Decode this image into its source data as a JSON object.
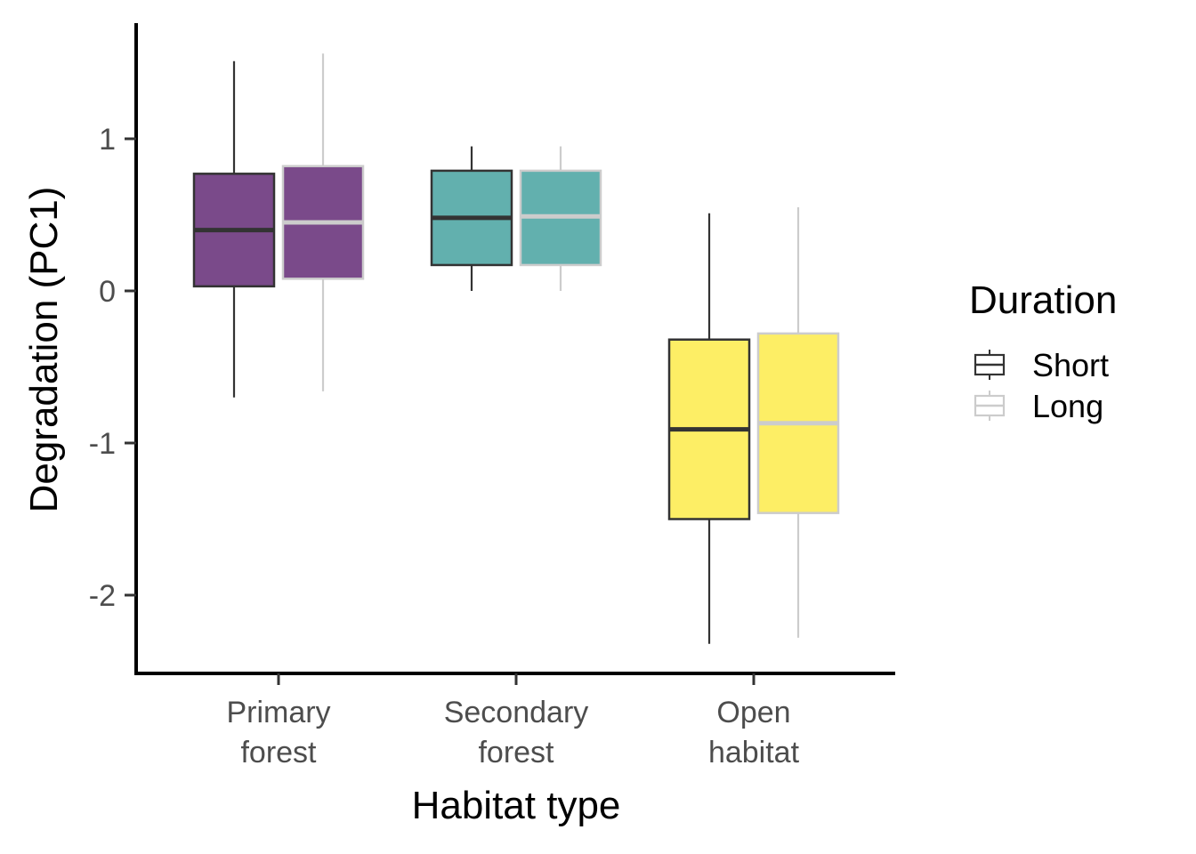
{
  "chart_data": {
    "type": "boxplot",
    "xlabel": "Habitat type",
    "ylabel": "Degradation (PC1)",
    "ylim": [
      -2.5,
      1.75
    ],
    "yticks": [
      -2,
      -1,
      0,
      1
    ],
    "ytick_labels": [
      "-2",
      "-1",
      "0",
      "1"
    ],
    "grid": false,
    "categories": [
      {
        "lines": [
          "Primary",
          "forest"
        ],
        "fill": "#7a4a8a"
      },
      {
        "lines": [
          "Secondary",
          "forest"
        ],
        "fill": "#62b0ae"
      },
      {
        "lines": [
          "Open",
          "habitat"
        ],
        "fill": "#fdee65"
      }
    ],
    "legend": {
      "title": "Duration",
      "position": "right",
      "entries": [
        {
          "label": "Short",
          "color": "#333333"
        },
        {
          "label": "Long",
          "color": "#cccccc"
        }
      ]
    },
    "series": [
      {
        "name": "Short",
        "stroke": "#333333",
        "boxes": [
          {
            "whisker_low": -0.7,
            "q1": 0.03,
            "median": 0.4,
            "q3": 0.77,
            "whisker_high": 1.51
          },
          {
            "whisker_low": 0.0,
            "q1": 0.17,
            "median": 0.48,
            "q3": 0.79,
            "whisker_high": 0.95
          },
          {
            "whisker_low": -2.32,
            "q1": -1.5,
            "median": -0.91,
            "q3": -0.32,
            "whisker_high": 0.51
          }
        ]
      },
      {
        "name": "Long",
        "stroke": "#cccccc",
        "boxes": [
          {
            "whisker_low": -0.66,
            "q1": 0.08,
            "median": 0.45,
            "q3": 0.82,
            "whisker_high": 1.56
          },
          {
            "whisker_low": 0.0,
            "q1": 0.17,
            "median": 0.49,
            "q3": 0.79,
            "whisker_high": 0.95
          },
          {
            "whisker_low": -2.28,
            "q1": -1.46,
            "median": -0.87,
            "q3": -0.28,
            "whisker_high": 0.55
          }
        ]
      }
    ]
  }
}
